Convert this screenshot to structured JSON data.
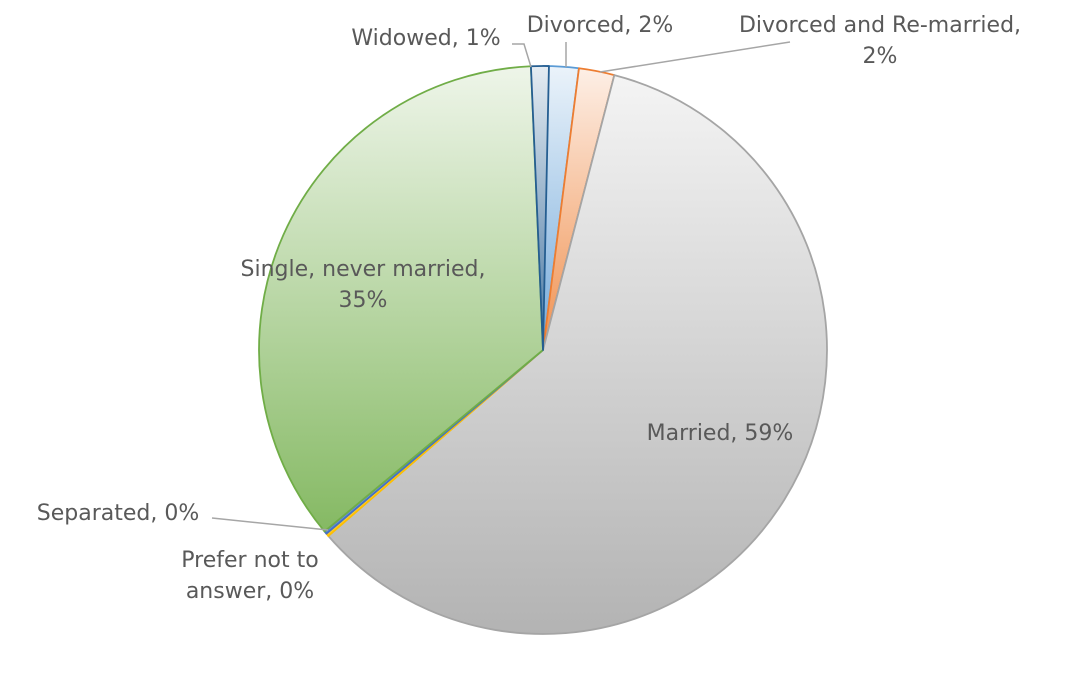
{
  "chart_data": {
    "type": "pie",
    "title": "",
    "slices": [
      {
        "category": "Divorced",
        "value": 2,
        "label": "Divorced, 2%",
        "color": "#5B9BD5"
      },
      {
        "category": "Divorced and Re-married",
        "value": 2,
        "label": "Divorced and Re-married, 2%",
        "color": "#ED7D31"
      },
      {
        "category": "Married",
        "value": 59,
        "label": "Married, 59%",
        "color": "#A5A5A5"
      },
      {
        "category": "Prefer not to answer",
        "value": 0,
        "label": "Prefer not to answer, 0%",
        "color": "#FFC000"
      },
      {
        "category": "Separated",
        "value": 0,
        "label": "Separated, 0%",
        "color": "#4472C4"
      },
      {
        "category": "Single, never married",
        "value": 35,
        "label": "Single, never married, 35%",
        "color": "#70AD47"
      },
      {
        "category": "Widowed",
        "value": 1,
        "label": "Widowed, 1%",
        "color": "#255E91"
      }
    ],
    "legend": "none"
  }
}
